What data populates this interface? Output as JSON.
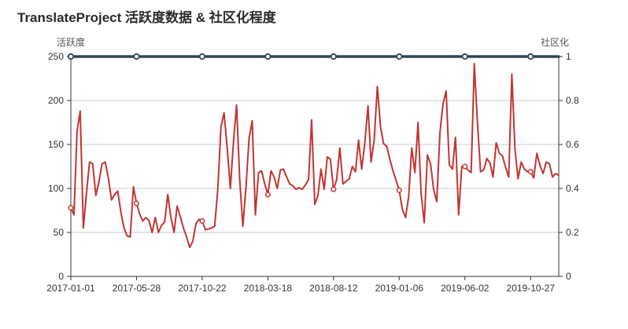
{
  "title": "TranslateProject 活跃度数据 & 社区化程度",
  "chart_data": {
    "type": "line",
    "title": "TranslateProject 活跃度数据 & 社区化程度",
    "grid": true,
    "legend_position": "none",
    "colors": {
      "activity": "#c23531",
      "community": "#2f4554",
      "gridline": "#cccccc",
      "axis": "#333333",
      "tick_text": "#333333",
      "marker_fill": "#ffffff"
    },
    "left_axis": {
      "name": "活跃度",
      "min": 0,
      "max": 250,
      "tick_labels": [
        "0",
        "50",
        "100",
        "150",
        "200",
        "250"
      ]
    },
    "right_axis": {
      "name": "社区化",
      "min": 0,
      "max": 1,
      "tick_labels": [
        "0",
        "0.2",
        "0.4",
        "0.6",
        "0.8",
        "1"
      ]
    },
    "x_axis": {
      "start_date": "2017-01-01",
      "step_days": 7,
      "n_points": 157,
      "tick_every_n_points": 21,
      "tick_labels": [
        "2017-01-01",
        "2017-05-28",
        "2017-10-22",
        "2018-03-18",
        "2018-08-12",
        "2019-01-06",
        "2019-06-02",
        "2019-10-27"
      ]
    },
    "series": [
      {
        "name": "活跃度",
        "axis": "left",
        "color": "#c23531",
        "marker_every": 21,
        "values": [
          78,
          70,
          165,
          188,
          55,
          95,
          130,
          128,
          92,
          108,
          128,
          130,
          112,
          87,
          93,
          97,
          73,
          55,
          46,
          45,
          102,
          83,
          71,
          63,
          67,
          63,
          50,
          67,
          50,
          58,
          62,
          93,
          67,
          50,
          80,
          68,
          55,
          45,
          33,
          40,
          60,
          65,
          63,
          53,
          54,
          55,
          57,
          100,
          170,
          186,
          146,
          100,
          153,
          195,
          110,
          57,
          102,
          157,
          177,
          70,
          118,
          120,
          105,
          93,
          120,
          113,
          100,
          121,
          122,
          113,
          105,
          103,
          99,
          101,
          99,
          104,
          110,
          178,
          82,
          92,
          122,
          99,
          136,
          133,
          99,
          110,
          146,
          105,
          108,
          111,
          125,
          119,
          155,
          122,
          152,
          194,
          130,
          155,
          216,
          170,
          151,
          148,
          133,
          120,
          109,
          98,
          76,
          67,
          90,
          146,
          118,
          175,
          94,
          61,
          138,
          128,
          99,
          85,
          163,
          196,
          211,
          127,
          122,
          158,
          70,
          125,
          125,
          121,
          118,
          242,
          175,
          119,
          121,
          134,
          129,
          113,
          152,
          140,
          137,
          124,
          113,
          230,
          144,
          111,
          130,
          122,
          119,
          119,
          112,
          140,
          126,
          117,
          130,
          128,
          113,
          117,
          115
        ]
      },
      {
        "name": "社区化",
        "axis": "right",
        "color": "#2f4554",
        "marker_every": 21,
        "constant_value": 1
      }
    ]
  }
}
